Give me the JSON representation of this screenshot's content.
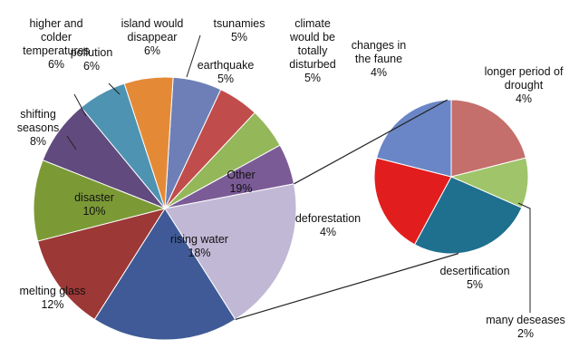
{
  "chart_data": {
    "type": "pie",
    "title": "",
    "main_pie": {
      "slices": [
        {
          "label": "island would disappear",
          "value": 6,
          "value_label": "6%",
          "color": "#6d7fb6"
        },
        {
          "label": "tsunamies",
          "value": 5,
          "value_label": "5%",
          "color": "#c04d4b"
        },
        {
          "label": "earthquake",
          "value": 5,
          "value_label": "5%",
          "color": "#94b75a"
        },
        {
          "label": "climate would be totally disturbed",
          "value": 5,
          "value_label": "5%",
          "color": "#7b5b96"
        },
        {
          "label": "Other",
          "value": 19,
          "value_label": "19%",
          "color": "#c1b8d6"
        },
        {
          "label": "rising water",
          "value": 18,
          "value_label": "18%",
          "color": "#3f5a96"
        },
        {
          "label": "melting glass",
          "value": 12,
          "value_label": "12%",
          "color": "#9c3836"
        },
        {
          "label": "disaster",
          "value": 10,
          "value_label": "10%",
          "color": "#7b9a36"
        },
        {
          "label": "shifting seasons",
          "value": 8,
          "value_label": "8%",
          "color": "#614a7d"
        },
        {
          "label": "higher and colder temperatures",
          "value": 6,
          "value_label": "6%",
          "color": "#4f93b2"
        },
        {
          "label": "pollution",
          "value": 6,
          "value_label": "6%",
          "color": "#e48a37"
        }
      ]
    },
    "secondary_pie": {
      "parent_slice": "Other",
      "slices": [
        {
          "label": "longer period of drought",
          "value": 4,
          "value_label": "4%",
          "color": "#c46f6c"
        },
        {
          "label": "many deseases",
          "value": 2,
          "value_label": "2%",
          "color": "#9fc46a"
        },
        {
          "label": "desertification",
          "value": 5,
          "value_label": "5%",
          "color": "#1f6f8e"
        },
        {
          "label": "deforestation",
          "value": 4,
          "value_label": "4%",
          "color": "#e21d1d"
        },
        {
          "label": "changes in the faune",
          "value": 4,
          "value_label": "4%",
          "color": "#6b86c6"
        }
      ]
    }
  }
}
